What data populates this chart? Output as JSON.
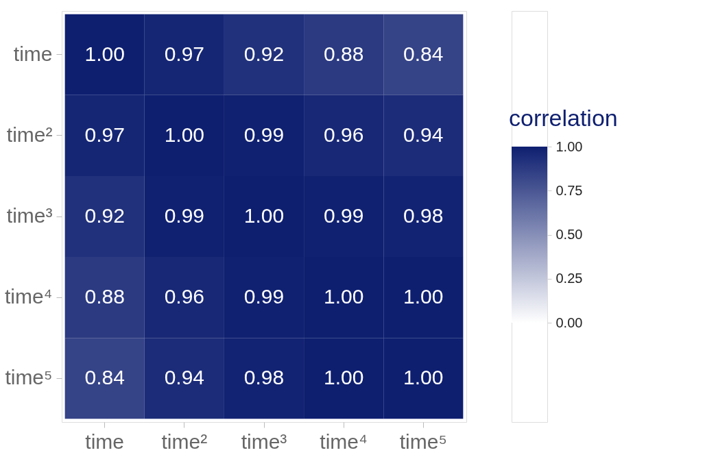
{
  "chart_data": {
    "type": "heatmap",
    "legend_title": "correlation",
    "categories": [
      "time",
      "time²",
      "time³",
      "time⁴",
      "time⁵"
    ],
    "y_categories": [
      "time",
      "time²",
      "time³",
      "time⁴",
      "time⁵"
    ],
    "cells": [
      [
        1.0,
        0.97,
        0.92,
        0.88,
        0.84
      ],
      [
        0.97,
        1.0,
        0.99,
        0.96,
        0.94
      ],
      [
        0.92,
        0.99,
        1.0,
        0.99,
        0.98
      ],
      [
        0.88,
        0.96,
        0.99,
        1.0,
        1.0
      ],
      [
        0.84,
        0.94,
        0.98,
        1.0,
        1.0
      ]
    ],
    "cell_labels": [
      [
        "1.00",
        "0.97",
        "0.92",
        "0.88",
        "0.84"
      ],
      [
        "0.97",
        "1.00",
        "0.99",
        "0.96",
        "0.94"
      ],
      [
        "0.92",
        "0.99",
        "1.00",
        "0.99",
        "0.98"
      ],
      [
        "0.88",
        "0.96",
        "0.99",
        "1.00",
        "1.00"
      ],
      [
        "0.84",
        "0.94",
        "0.98",
        "1.00",
        "1.00"
      ]
    ],
    "clim": [
      0,
      1
    ],
    "cticks": [
      {
        "value": 0,
        "label": "0.00"
      },
      {
        "value": 0.25,
        "label": "0.25"
      },
      {
        "value": 0.5,
        "label": "0.50"
      },
      {
        "value": 0.75,
        "label": "0.75"
      },
      {
        "value": 1,
        "label": "1.00"
      }
    ],
    "colors": [
      "#ffffff",
      "#0e1f70"
    ],
    "grid": false
  }
}
